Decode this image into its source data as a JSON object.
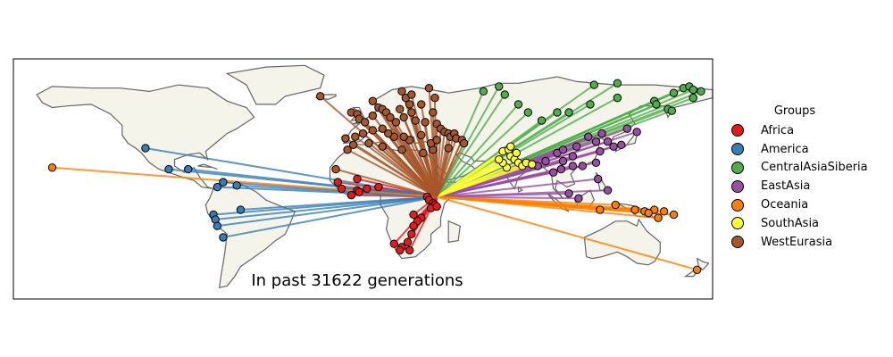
{
  "map": {
    "caption": "In past 31622 generations",
    "land_color": "#f4f4ea",
    "coast_color": "#666666",
    "frame_color": "#000000",
    "hub": {
      "lon": 38,
      "lat": 3
    },
    "extent": {
      "lon": [
        -180,
        180
      ],
      "lat": [
        -60,
        88
      ]
    }
  },
  "legend": {
    "title": "Groups",
    "items": [
      {
        "label": "Africa",
        "color": "#e41a1c"
      },
      {
        "label": "America",
        "color": "#377eb8"
      },
      {
        "label": "CentralAsiaSiberia",
        "color": "#4daf4a"
      },
      {
        "label": "EastAsia",
        "color": "#984ea3"
      },
      {
        "label": "Oceania",
        "color": "#ff7f00"
      },
      {
        "label": "SouthAsia",
        "color": "#ffff33"
      },
      {
        "label": "WestEurasia",
        "color": "#a65628"
      }
    ]
  },
  "populations": {
    "Africa": [
      [
        -3,
        14
      ],
      [
        -13,
        12
      ],
      [
        -11,
        8
      ],
      [
        -3,
        7
      ],
      [
        -2,
        6
      ],
      [
        2,
        8
      ],
      [
        8,
        9
      ],
      [
        -6,
        4
      ],
      [
        33,
        3
      ],
      [
        34,
        1
      ],
      [
        36,
        -1
      ],
      [
        37,
        -2
      ],
      [
        35,
        -4
      ],
      [
        38,
        -3
      ],
      [
        30,
        -10
      ],
      [
        28,
        -12
      ],
      [
        26,
        -15
      ],
      [
        25,
        -20
      ],
      [
        23,
        -25
      ],
      [
        20,
        -28
      ],
      [
        19,
        -30
      ],
      [
        16,
        -26
      ],
      [
        24,
        -30
      ],
      [
        26,
        -8
      ]
    ],
    "America": [
      [
        -112,
        33
      ],
      [
        -100,
        20
      ],
      [
        -90,
        20
      ],
      [
        -75,
        9
      ],
      [
        -72,
        12
      ],
      [
        -65,
        10
      ],
      [
        -63,
        -5
      ],
      [
        -77,
        -8
      ],
      [
        -76,
        -11
      ],
      [
        -75,
        -15
      ],
      [
        -72,
        -22
      ]
    ],
    "CentralAsiaSiberia": [
      [
        62,
        68
      ],
      [
        70,
        71
      ],
      [
        73,
        66
      ],
      [
        80,
        60
      ],
      [
        85,
        55
      ],
      [
        92,
        50
      ],
      [
        100,
        55
      ],
      [
        106,
        55
      ],
      [
        117,
        60
      ],
      [
        131,
        64
      ],
      [
        150,
        62
      ],
      [
        157,
        57
      ],
      [
        159,
        56
      ],
      [
        165,
        70
      ],
      [
        168,
        71
      ],
      [
        170,
        69
      ],
      [
        174,
        68
      ],
      [
        170,
        64
      ],
      [
        151,
        60
      ],
      [
        119,
        72
      ],
      [
        131,
        73
      ],
      [
        160,
        67
      ]
    ],
    "EastAsia": [
      [
        100,
        30
      ],
      [
        103,
        32
      ],
      [
        108,
        28
      ],
      [
        110,
        34
      ],
      [
        116,
        40
      ],
      [
        120,
        37
      ],
      [
        122,
        31
      ],
      [
        123,
        42
      ],
      [
        126,
        37
      ],
      [
        129,
        34
      ],
      [
        133,
        35
      ],
      [
        136,
        45
      ],
      [
        141,
        43
      ],
      [
        103,
        25
      ],
      [
        108,
        22
      ],
      [
        113,
        22
      ],
      [
        120,
        24
      ],
      [
        94,
        25
      ],
      [
        90,
        22
      ],
      [
        98,
        18
      ],
      [
        102,
        20
      ],
      [
        121,
        14
      ],
      [
        126,
        7
      ],
      [
        111,
        2
      ],
      [
        106,
        5
      ]
    ],
    "Oceania": [
      [
        -160,
        21
      ],
      [
        140,
        -5
      ],
      [
        145,
        -6
      ],
      [
        150,
        -5
      ],
      [
        147,
        -7
      ],
      [
        155,
        -6
      ],
      [
        160,
        -8
      ],
      [
        152,
        -10
      ],
      [
        172,
        -42
      ],
      [
        130,
        -2
      ],
      [
        122,
        -5
      ]
    ],
    "SouthAsia": [
      [
        72,
        31
      ],
      [
        75,
        32
      ],
      [
        76,
        28
      ],
      [
        78,
        26
      ],
      [
        80,
        24
      ],
      [
        82,
        22
      ],
      [
        84,
        24
      ],
      [
        87,
        23
      ],
      [
        74,
        21
      ],
      [
        72,
        24
      ],
      [
        70,
        26
      ],
      [
        76,
        34
      ],
      [
        79,
        30
      ]
    ],
    "WestEurasia": [
      [
        -6,
        55
      ],
      [
        -3,
        54
      ],
      [
        -2,
        51
      ],
      [
        1,
        49
      ],
      [
        5,
        53
      ],
      [
        8,
        58
      ],
      [
        10,
        57
      ],
      [
        12,
        55
      ],
      [
        14,
        52
      ],
      [
        17,
        49
      ],
      [
        19,
        57
      ],
      [
        21,
        52
      ],
      [
        24,
        60
      ],
      [
        25,
        55
      ],
      [
        27,
        50
      ],
      [
        30,
        60
      ],
      [
        32,
        49
      ],
      [
        36,
        55
      ],
      [
        38,
        48
      ],
      [
        40,
        45
      ],
      [
        42,
        43
      ],
      [
        44,
        42
      ],
      [
        45,
        40
      ],
      [
        47,
        42
      ],
      [
        48,
        39
      ],
      [
        51,
        38
      ],
      [
        52,
        36
      ],
      [
        44,
        33
      ],
      [
        36,
        32
      ],
      [
        35,
        36
      ],
      [
        38,
        38
      ],
      [
        30,
        41
      ],
      [
        24,
        38
      ],
      [
        21,
        40
      ],
      [
        16,
        40
      ],
      [
        13,
        42
      ],
      [
        10,
        45
      ],
      [
        5,
        44
      ],
      [
        0,
        42
      ],
      [
        -4,
        40
      ],
      [
        -9,
        39
      ],
      [
        -5,
        35
      ],
      [
        3,
        36
      ],
      [
        10,
        34
      ],
      [
        20,
        32
      ],
      [
        31,
        30
      ],
      [
        22,
        64
      ],
      [
        25,
        66
      ],
      [
        34,
        70
      ],
      [
        20,
        68
      ],
      [
        5,
        62
      ],
      [
        -22,
        65
      ],
      [
        -14,
        20
      ],
      [
        -8,
        32
      ],
      [
        37,
        64
      ]
    ]
  }
}
